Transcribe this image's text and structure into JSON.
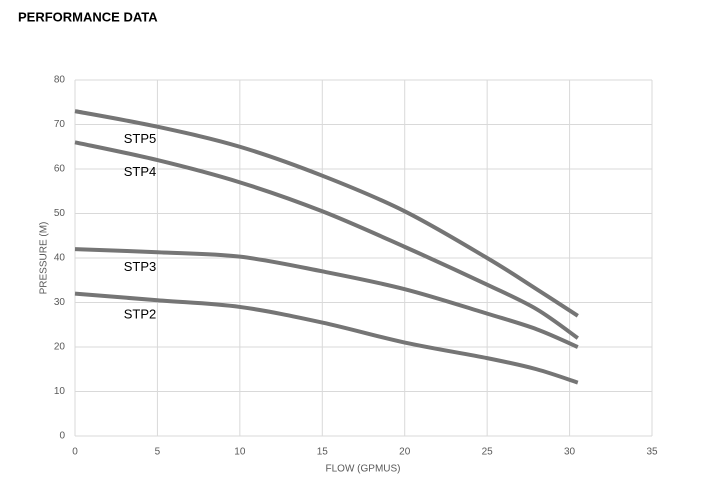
{
  "chart_data": {
    "type": "line",
    "title": "PERFORMANCE DATA",
    "x_label": "FLOW (GPMUS)",
    "y_label": "PRESSURE (M)",
    "x": [
      0,
      5,
      10,
      15,
      20,
      25,
      28,
      30.5
    ],
    "series": [
      {
        "name": "STP5",
        "color": "#757575",
        "values": [
          73,
          69.5,
          65,
          58.5,
          50.5,
          40,
          33,
          27
        ]
      },
      {
        "name": "STP4",
        "color": "#757575",
        "values": [
          66,
          62,
          57,
          50.5,
          42.5,
          34,
          28.5,
          22
        ]
      },
      {
        "name": "STP3",
        "color": "#757575",
        "values": [
          42,
          41.3,
          40.3,
          37,
          33,
          27.5,
          24,
          20
        ]
      },
      {
        "name": "STP2",
        "color": "#757575",
        "values": [
          32,
          30.5,
          29,
          25.5,
          21,
          17.5,
          15,
          12
        ]
      }
    ],
    "xlim": [
      0,
      35
    ],
    "xticks": [
      0,
      5,
      10,
      15,
      20,
      25,
      30,
      35
    ],
    "ylim": [
      0,
      80
    ],
    "yticks": [
      0,
      10,
      20,
      30,
      40,
      50,
      60,
      70,
      80
    ],
    "grid": true
  }
}
